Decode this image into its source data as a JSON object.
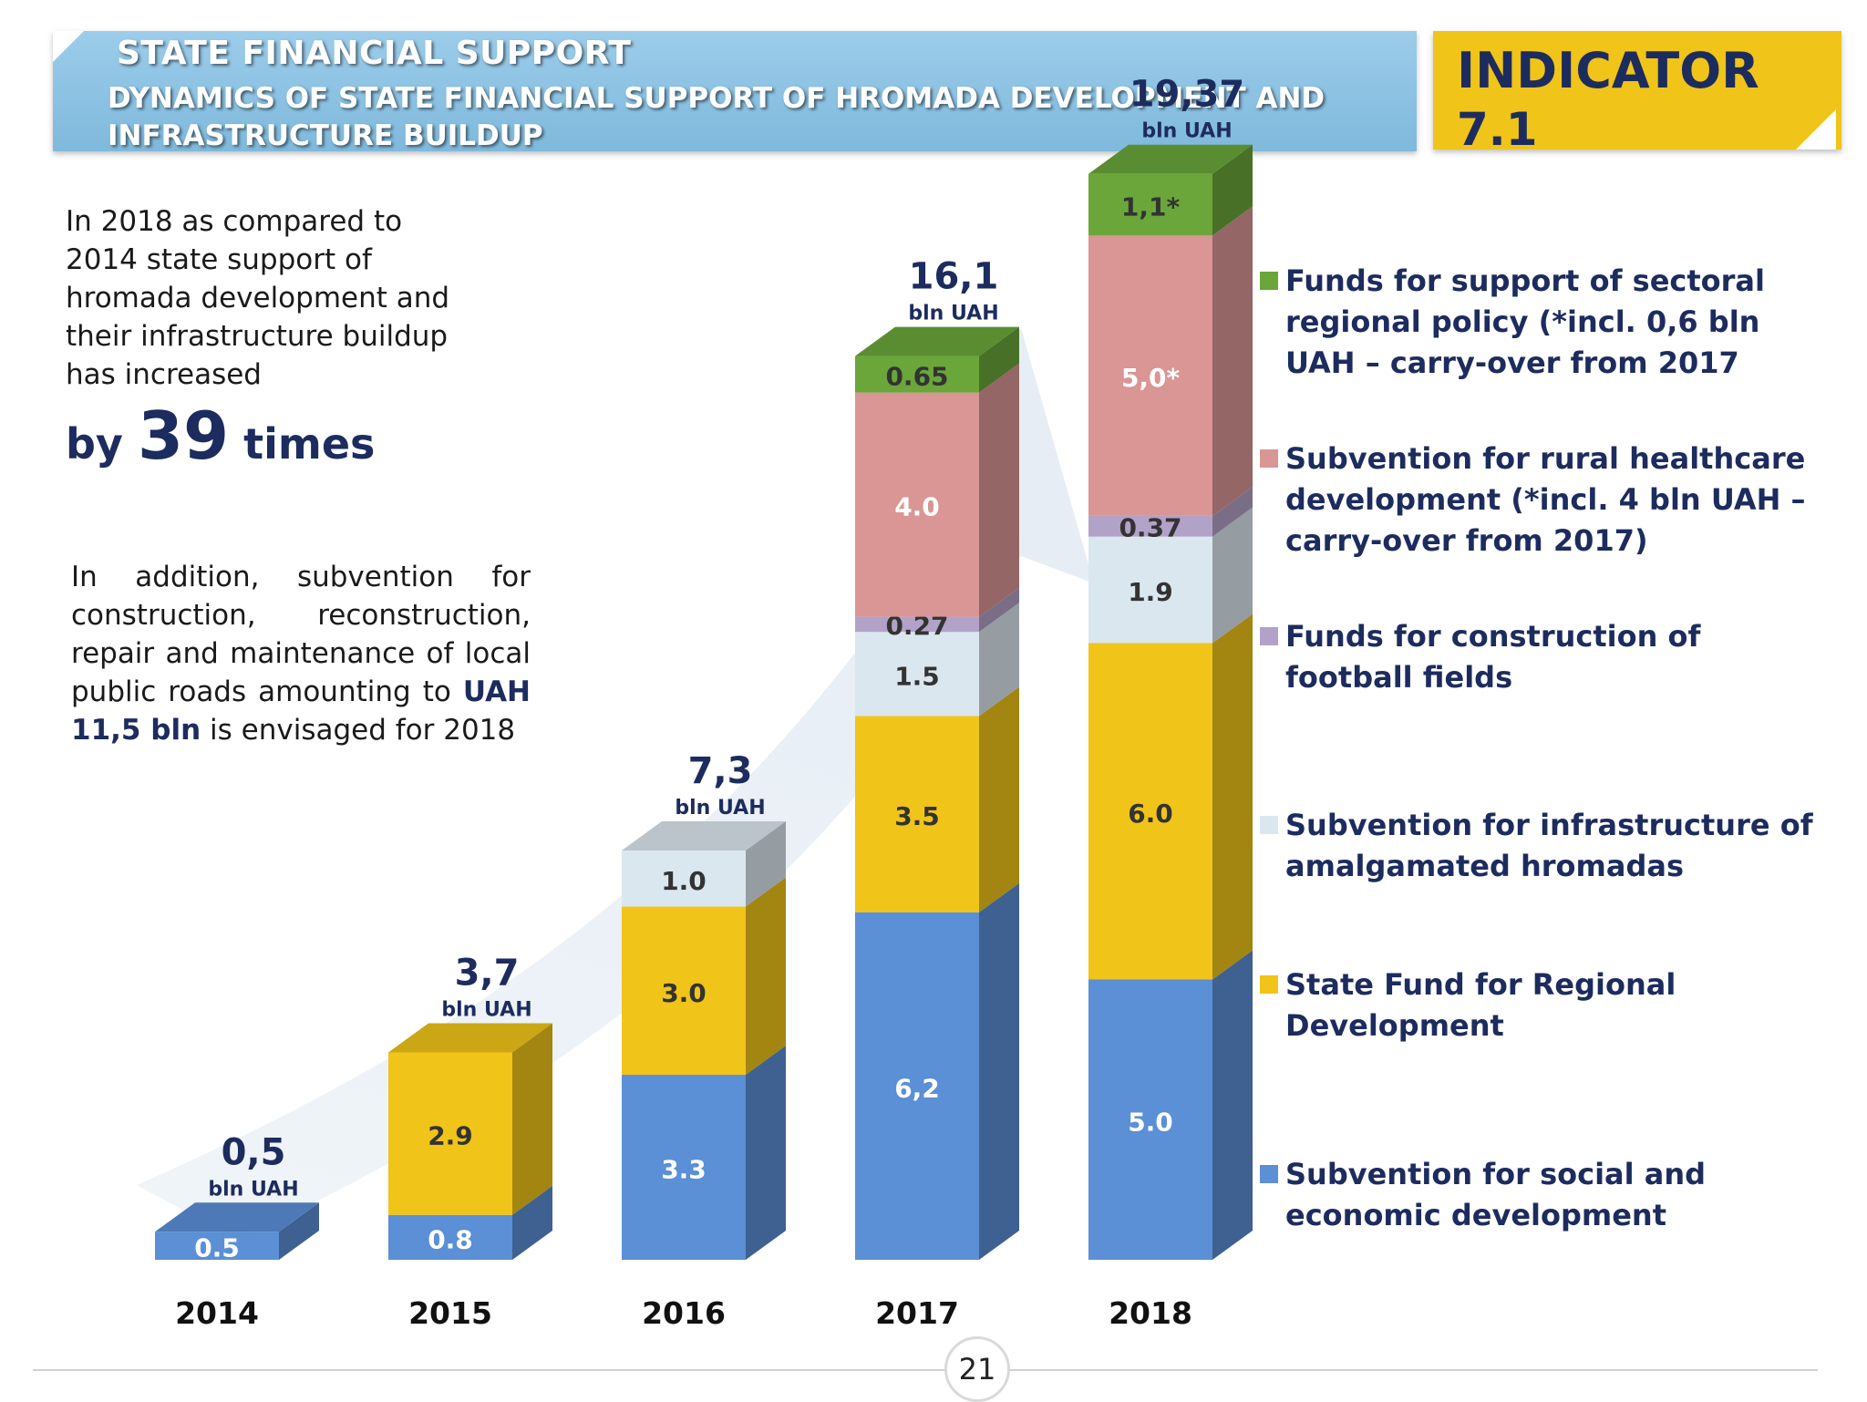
{
  "header": {
    "title": "STATE FINANCIAL SUPPORT",
    "subtitle": "DYNAMICS OF STATE FINANCIAL SUPPORT OF HROMADA DEVELOPMENT AND INFRASTRUCTURE BUILDUP"
  },
  "indicator": {
    "label": "INDICATOR",
    "number": "7.1"
  },
  "intro": {
    "text": "In 2018 as compared to 2014 state support of hromada development and their infrastructure buildup has increased",
    "by": "by",
    "times_value": "39",
    "times": "times"
  },
  "addition": {
    "text_before": "In addition, subvention for construction, reconstruction, repair and maintenance of local public roads amounting to ",
    "amount": "UAH 11,5 bln",
    "text_after": " is envisaged for 2018"
  },
  "legend": [
    {
      "label": "Funds for support of sectoral regional policy  (*incl. 0,6 bln UAH – carry-over from 2017",
      "color": "#6aa63a"
    },
    {
      "label": "Subvention for rural healthcare development (*incl. 4 bln UAH – carry-over from 2017)",
      "color": "#d99694"
    },
    {
      "label": "Funds for construction of football fields",
      "color": "#b3a2c7"
    },
    {
      "label": "Subvention for infrastructure of amalgamated hromadas",
      "color": "#dbe7ee"
    },
    {
      "label": "State Fund for Regional Development",
      "color": "#f0c419"
    },
    {
      "label": "Subvention for social and economic development",
      "color": "#5b8fd6"
    }
  ],
  "page_number": "21",
  "chart_data": {
    "type": "bar",
    "stacked": true,
    "title": "",
    "categories": [
      "2014",
      "2015",
      "2016",
      "2017",
      "2018"
    ],
    "unit": "bln UAH",
    "totals": [
      "0,5",
      "3,7",
      "7,3",
      "16,1",
      "19,37"
    ],
    "series": [
      {
        "name": "Subvention for social and economic development",
        "color": "#5b8fd6",
        "values": [
          0.5,
          0.8,
          3.3,
          6.2,
          5.0
        ],
        "labels": [
          "0.5",
          "0.8",
          "3.3",
          "6,2",
          "5.0"
        ]
      },
      {
        "name": "State Fund for Regional Development",
        "color": "#f0c419",
        "values": [
          0,
          2.9,
          3.0,
          3.5,
          6.0
        ],
        "labels": [
          "",
          "2.9",
          "3.0",
          "3.5",
          "6.0"
        ]
      },
      {
        "name": "Subvention for infrastructure of amalgamated hromadas",
        "color": "#dbe7ee",
        "values": [
          0,
          0,
          1.0,
          1.5,
          1.9
        ],
        "labels": [
          "",
          "",
          "1.0",
          "1.5",
          "1.9"
        ]
      },
      {
        "name": "Funds for construction of football fields",
        "color": "#b3a2c7",
        "values": [
          0,
          0,
          0,
          0.27,
          0.37
        ],
        "labels": [
          "",
          "",
          "",
          "0.27",
          "0.37"
        ]
      },
      {
        "name": "Subvention for rural healthcare development",
        "color": "#d99694",
        "values": [
          0,
          0,
          0,
          4.0,
          5.0
        ],
        "labels": [
          "",
          "",
          "",
          "4.0",
          "5,0*"
        ]
      },
      {
        "name": "Funds for support of sectoral regional policy",
        "color": "#6aa63a",
        "values": [
          0,
          0,
          0,
          0.65,
          1.1
        ],
        "labels": [
          "",
          "",
          "",
          "0.65",
          "1,1*"
        ]
      }
    ]
  }
}
